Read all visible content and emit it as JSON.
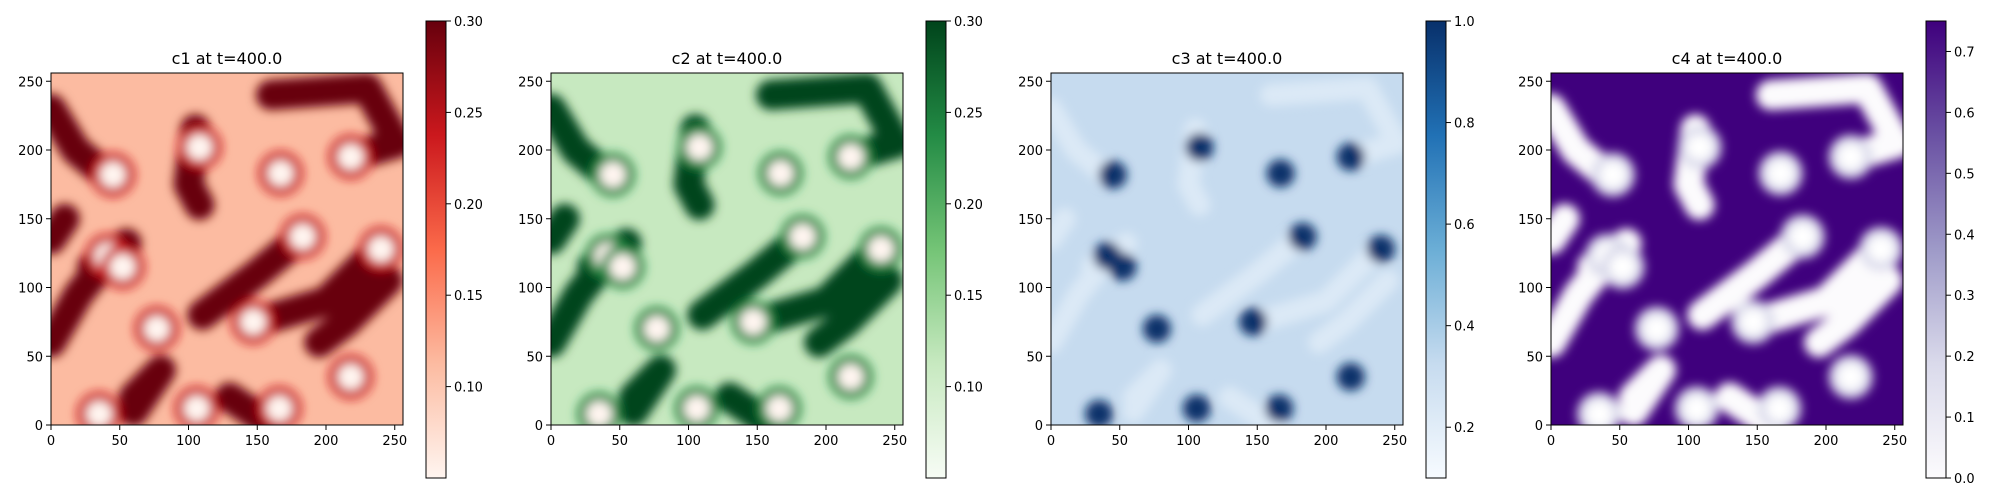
{
  "figure": {
    "panels": [
      {
        "title": "c1 at t=400.0",
        "colormap": "reds",
        "colorbar": {
          "min": 0.05,
          "max": 0.3,
          "ticks": [
            "0.10",
            "0.15",
            "0.20",
            "0.25",
            "0.30"
          ],
          "tick_values": [
            0.1,
            0.15,
            0.2,
            0.25,
            0.3
          ]
        },
        "x_ticks": [
          "0",
          "50",
          "100",
          "150",
          "200",
          "250"
        ],
        "y_ticks": [
          "0",
          "50",
          "100",
          "150",
          "200",
          "250"
        ]
      },
      {
        "title": "c2 at t=400.0",
        "colormap": "greens",
        "colorbar": {
          "min": 0.05,
          "max": 0.3,
          "ticks": [
            "0.10",
            "0.15",
            "0.20",
            "0.25",
            "0.30"
          ],
          "tick_values": [
            0.1,
            0.15,
            0.2,
            0.25,
            0.3
          ]
        },
        "x_ticks": [
          "0",
          "50",
          "100",
          "150",
          "200",
          "250"
        ],
        "y_ticks": [
          "0",
          "50",
          "100",
          "150",
          "200",
          "250"
        ]
      },
      {
        "title": "c3 at t=400.0",
        "colormap": "blues",
        "colorbar": {
          "min": 0.1,
          "max": 1.0,
          "ticks": [
            "0.2",
            "0.4",
            "0.6",
            "0.8",
            "1.0"
          ],
          "tick_values": [
            0.2,
            0.4,
            0.6,
            0.8,
            1.0
          ]
        },
        "x_ticks": [
          "0",
          "50",
          "100",
          "150",
          "200",
          "250"
        ],
        "y_ticks": [
          "0",
          "50",
          "100",
          "150",
          "200",
          "250"
        ]
      },
      {
        "title": "c4 at t=400.0",
        "colormap": "purples",
        "colorbar": {
          "min": 0.0,
          "max": 0.75,
          "ticks": [
            "0.0",
            "0.1",
            "0.2",
            "0.3",
            "0.4",
            "0.5",
            "0.6",
            "0.7"
          ],
          "tick_values": [
            0.0,
            0.1,
            0.2,
            0.3,
            0.4,
            0.5,
            0.6,
            0.7
          ]
        },
        "x_ticks": [
          "0",
          "50",
          "100",
          "150",
          "200",
          "250"
        ],
        "y_ticks": [
          "0",
          "50",
          "100",
          "150",
          "200",
          "250"
        ]
      }
    ]
  },
  "chart_data": [
    {
      "type": "heatmap",
      "title": "c1 at t=400.0",
      "xlim": [
        0,
        256
      ],
      "ylim": [
        0,
        256
      ],
      "value_range": [
        0.05,
        0.3
      ],
      "spots": [
        [
          45,
          182
        ],
        [
          108,
          202
        ],
        [
          167,
          183
        ],
        [
          218,
          195
        ],
        [
          41,
          123
        ],
        [
          52,
          115
        ],
        [
          77,
          70
        ],
        [
          147,
          75
        ],
        [
          183,
          137
        ],
        [
          240,
          128
        ],
        [
          35,
          8
        ],
        [
          106,
          12
        ],
        [
          166,
          12
        ],
        [
          218,
          35
        ]
      ]
    },
    {
      "type": "heatmap",
      "title": "c2 at t=400.0",
      "xlim": [
        0,
        256
      ],
      "ylim": [
        0,
        256
      ],
      "value_range": [
        0.05,
        0.3
      ],
      "spots": [
        [
          45,
          182
        ],
        [
          108,
          202
        ],
        [
          167,
          183
        ],
        [
          218,
          195
        ],
        [
          41,
          123
        ],
        [
          52,
          115
        ],
        [
          77,
          70
        ],
        [
          147,
          75
        ],
        [
          183,
          137
        ],
        [
          240,
          128
        ],
        [
          35,
          8
        ],
        [
          106,
          12
        ],
        [
          166,
          12
        ],
        [
          218,
          35
        ]
      ]
    },
    {
      "type": "heatmap",
      "title": "c3 at t=400.0",
      "xlim": [
        0,
        256
      ],
      "ylim": [
        0,
        256
      ],
      "value_range": [
        0.1,
        1.0
      ],
      "spots": [
        [
          45,
          182
        ],
        [
          108,
          202
        ],
        [
          167,
          183
        ],
        [
          218,
          195
        ],
        [
          41,
          123
        ],
        [
          52,
          115
        ],
        [
          77,
          70
        ],
        [
          147,
          75
        ],
        [
          183,
          137
        ],
        [
          240,
          128
        ],
        [
          35,
          8
        ],
        [
          106,
          12
        ],
        [
          166,
          12
        ],
        [
          218,
          35
        ]
      ]
    },
    {
      "type": "heatmap",
      "title": "c4 at t=400.0",
      "xlim": [
        0,
        256
      ],
      "ylim": [
        0,
        256
      ],
      "value_range": [
        0.0,
        0.75
      ],
      "spots": [
        [
          45,
          182
        ],
        [
          108,
          202
        ],
        [
          167,
          183
        ],
        [
          218,
          195
        ],
        [
          41,
          123
        ],
        [
          52,
          115
        ],
        [
          77,
          70
        ],
        [
          147,
          75
        ],
        [
          183,
          137
        ],
        [
          240,
          128
        ],
        [
          35,
          8
        ],
        [
          106,
          12
        ],
        [
          166,
          12
        ],
        [
          218,
          35
        ]
      ]
    }
  ]
}
